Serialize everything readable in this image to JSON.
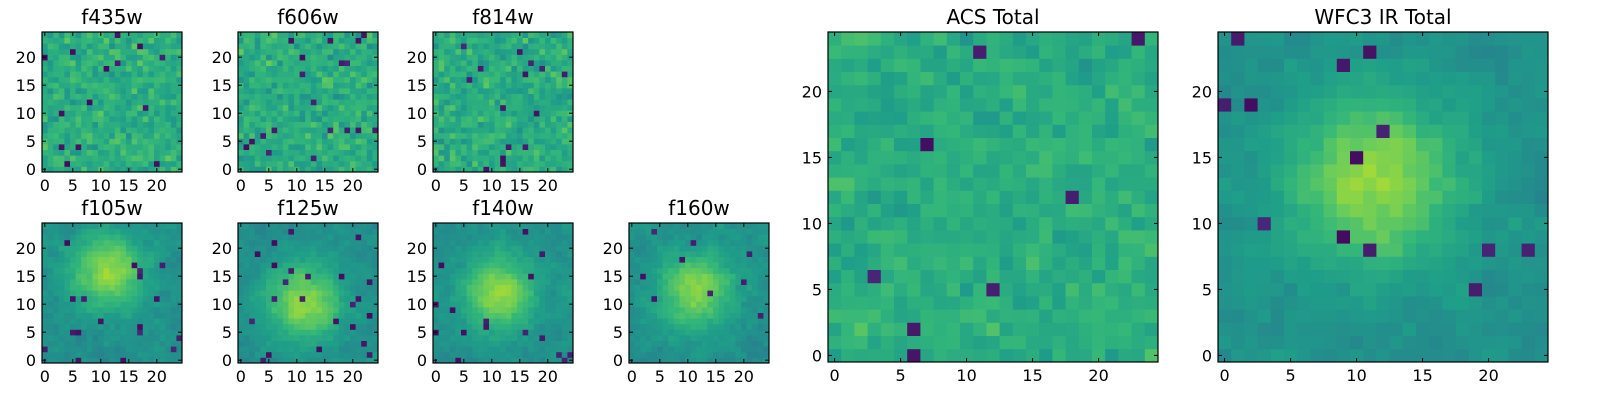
{
  "chart_data": [
    {
      "type": "heatmap",
      "title": "f435w",
      "xticks": [
        "0",
        "5",
        "10",
        "15",
        "20"
      ],
      "yticks": [
        "0",
        "5",
        "10",
        "15",
        "20"
      ],
      "xlim": [
        0,
        25
      ],
      "ylim": [
        0,
        25
      ],
      "grid_size": [
        25,
        25
      ],
      "colormap": "viridis",
      "texture": "fine-noise",
      "seed": 11
    },
    {
      "type": "heatmap",
      "title": "f606w",
      "xticks": [
        "0",
        "5",
        "10",
        "15",
        "20"
      ],
      "yticks": [
        "0",
        "5",
        "10",
        "15",
        "20"
      ],
      "xlim": [
        0,
        25
      ],
      "ylim": [
        0,
        25
      ],
      "grid_size": [
        25,
        25
      ],
      "colormap": "viridis",
      "texture": "fine-noise",
      "seed": 23
    },
    {
      "type": "heatmap",
      "title": "f814w",
      "xticks": [
        "0",
        "5",
        "10",
        "15",
        "20"
      ],
      "yticks": [
        "0",
        "5",
        "10",
        "15",
        "20"
      ],
      "xlim": [
        0,
        25
      ],
      "ylim": [
        0,
        25
      ],
      "grid_size": [
        25,
        25
      ],
      "colormap": "viridis",
      "texture": "fine-noise",
      "seed": 37
    },
    {
      "type": "heatmap",
      "title": "f105w",
      "xticks": [
        "0",
        "5",
        "10",
        "15",
        "20"
      ],
      "yticks": [
        "0",
        "5",
        "10",
        "15",
        "20"
      ],
      "xlim": [
        0,
        25
      ],
      "ylim": [
        0,
        25
      ],
      "grid_size": [
        25,
        25
      ],
      "colormap": "viridis",
      "texture": "smooth-bright-center",
      "seed": 41
    },
    {
      "type": "heatmap",
      "title": "f125w",
      "xticks": [
        "0",
        "5",
        "10",
        "15",
        "20"
      ],
      "yticks": [
        "0",
        "5",
        "10",
        "15",
        "20"
      ],
      "xlim": [
        0,
        25
      ],
      "ylim": [
        0,
        25
      ],
      "grid_size": [
        25,
        25
      ],
      "colormap": "viridis",
      "texture": "smooth-bright-center",
      "seed": 53
    },
    {
      "type": "heatmap",
      "title": "f140w",
      "xticks": [
        "0",
        "5",
        "10",
        "15",
        "20"
      ],
      "yticks": [
        "0",
        "5",
        "10",
        "15",
        "20"
      ],
      "xlim": [
        0,
        25
      ],
      "ylim": [
        0,
        25
      ],
      "grid_size": [
        25,
        25
      ],
      "colormap": "viridis",
      "texture": "smooth-bright-center",
      "seed": 67
    },
    {
      "type": "heatmap",
      "title": "f160w",
      "xticks": [
        "0",
        "5",
        "10",
        "15",
        "20"
      ],
      "yticks": [
        "0",
        "5",
        "10",
        "15",
        "20"
      ],
      "xlim": [
        0,
        25
      ],
      "ylim": [
        0,
        25
      ],
      "grid_size": [
        25,
        25
      ],
      "colormap": "viridis",
      "texture": "smooth-bright-center",
      "seed": 79
    },
    {
      "type": "heatmap",
      "title": "ACS Total",
      "xticks": [
        "0",
        "5",
        "10",
        "15",
        "20"
      ],
      "yticks": [
        "0",
        "5",
        "10",
        "15",
        "20"
      ],
      "xlim": [
        0,
        25
      ],
      "ylim": [
        0,
        25
      ],
      "grid_size": [
        25,
        25
      ],
      "colormap": "viridis",
      "texture": "noise",
      "seed": 97
    },
    {
      "type": "heatmap",
      "title": "WFC3 IR Total",
      "xticks": [
        "0",
        "5",
        "10",
        "15",
        "20"
      ],
      "yticks": [
        "0",
        "5",
        "10",
        "15",
        "20"
      ],
      "xlim": [
        0,
        25
      ],
      "ylim": [
        0,
        25
      ],
      "grid_size": [
        25,
        25
      ],
      "colormap": "viridis",
      "texture": "smooth-bright-center",
      "seed": 113
    }
  ]
}
